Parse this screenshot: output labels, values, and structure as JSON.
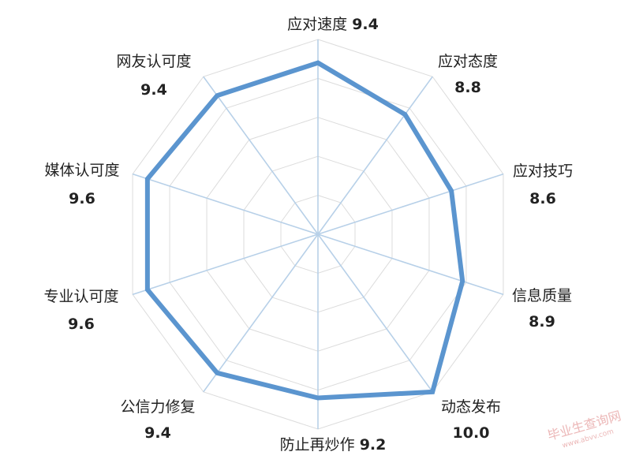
{
  "chart_data": {
    "type": "radar",
    "title": "",
    "axes": [
      "应对速度",
      "应对态度",
      "应对技巧",
      "信息质量",
      "动态发布",
      "防止再炒作",
      "公信力修复",
      "专业认可度",
      "媒体认可度",
      "网友认可度"
    ],
    "values": [
      9.4,
      8.8,
      8.6,
      8.9,
      10.0,
      9.2,
      9.4,
      9.6,
      9.6,
      9.4
    ],
    "value_labels": [
      "9.4",
      "8.8",
      "8.6",
      "8.9",
      "10.0",
      "9.2",
      "9.4",
      "9.6",
      "9.6",
      "9.4"
    ],
    "range": [
      5,
      10
    ],
    "rings": 5,
    "grid": true,
    "series_color": "#5b95cf"
  },
  "watermark": {
    "text": "毕业生查询网",
    "url": "www.abvv.com"
  }
}
